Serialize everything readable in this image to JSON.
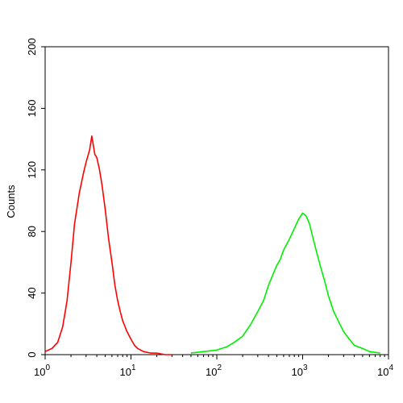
{
  "chart_data": {
    "type": "line",
    "title": "",
    "xlabel": "",
    "ylabel": "Counts",
    "xscale": "log",
    "xlim": [
      1,
      10000
    ],
    "ylim": [
      0,
      200
    ],
    "grid": false,
    "legend": "none",
    "x_ticks": [
      {
        "base": "10",
        "exp": "0"
      },
      {
        "base": "10",
        "exp": "1"
      },
      {
        "base": "10",
        "exp": "2"
      },
      {
        "base": "10",
        "exp": "3"
      },
      {
        "base": "10",
        "exp": "4"
      }
    ],
    "y_ticks": [
      "0",
      "40",
      "80",
      "120",
      "160",
      "200"
    ],
    "series": [
      {
        "color": "#ff0000",
        "x": [
          1.0,
          1.2,
          1.4,
          1.6,
          1.8,
          2.0,
          2.2,
          2.5,
          2.8,
          3.0,
          3.3,
          3.5,
          3.8,
          4.0,
          4.3,
          4.6,
          5.0,
          5.5,
          6.0,
          6.5,
          7.0,
          7.5,
          8.0,
          9.0,
          10.0,
          11.0,
          12.0,
          14.0,
          17.0,
          20.0,
          25.0,
          30.0
        ],
        "y": [
          2,
          4,
          8,
          18,
          35,
          60,
          85,
          105,
          118,
          125,
          133,
          142,
          130,
          128,
          120,
          110,
          95,
          75,
          60,
          45,
          35,
          28,
          22,
          15,
          10,
          6,
          4,
          2,
          1,
          1,
          0,
          0
        ]
      },
      {
        "color": "#00ee00",
        "x": [
          50,
          70,
          100,
          130,
          160,
          200,
          250,
          300,
          350,
          400,
          450,
          500,
          550,
          600,
          700,
          800,
          900,
          1000,
          1100,
          1200,
          1400,
          1600,
          1800,
          2000,
          2300,
          2700,
          3000,
          3500,
          4000,
          5000,
          6000,
          8000
        ],
        "y": [
          1,
          2,
          3,
          5,
          8,
          12,
          20,
          28,
          35,
          45,
          52,
          58,
          62,
          68,
          75,
          82,
          88,
          92,
          90,
          85,
          70,
          58,
          48,
          38,
          28,
          20,
          15,
          10,
          6,
          4,
          2,
          1
        ]
      }
    ]
  }
}
